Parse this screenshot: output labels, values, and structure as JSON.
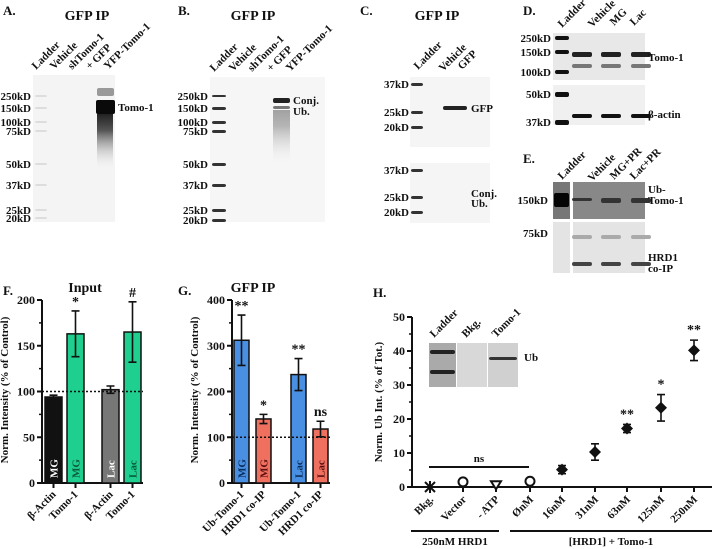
{
  "panels": {
    "A": {
      "letter": "A.",
      "title": "GFP IP",
      "lanes": [
        "Ladder",
        "Vehicle",
        "shTomo-1",
        "+ GFP",
        "YFP-Tomo-1"
      ],
      "mw": [
        "250kD",
        "150kD",
        "100kD",
        "75kD",
        "50kD",
        "37kD",
        "25kD",
        "20kD"
      ],
      "bands": [
        "Tomo-1"
      ]
    },
    "B": {
      "letter": "B.",
      "title": "GFP IP",
      "lanes": [
        "Ladder",
        "Vehicle",
        "shTomo-1",
        "+ GFP",
        "YFP-Tomo-1"
      ],
      "mw": [
        "250kD",
        "150kD",
        "100kD",
        "75kD",
        "50kD",
        "37kD",
        "25kD",
        "20kD"
      ],
      "bands": [
        "Conj.",
        "Ub."
      ]
    },
    "C": {
      "letter": "C.",
      "title": "GFP IP",
      "lanes": [
        "Ladder",
        "Vehicle",
        "GFP"
      ],
      "mw_top": [
        "37kD",
        "25kD",
        "20kD"
      ],
      "mw_bottom": [
        "37kD",
        "25kD",
        "20kD"
      ],
      "bands": [
        "GFP",
        "Conj.",
        "Ub."
      ]
    },
    "D": {
      "letter": "D.",
      "lanes": [
        "Ladder",
        "Vehicle",
        "MG",
        "Lac"
      ],
      "mw": [
        "250kD",
        "150kD",
        "100kD",
        "50kD",
        "37kD"
      ],
      "bands": [
        "Tomo-1",
        "β-actin"
      ]
    },
    "E": {
      "letter": "E.",
      "lanes": [
        "Ladder",
        "Vehicle",
        "MG+PR",
        "Lac+PR"
      ],
      "mw": [
        "150kD",
        "75kD"
      ],
      "bands": [
        "Ub-",
        "Tomo-1",
        "HRD1",
        "co-IP"
      ]
    },
    "H_inset": {
      "lanes": [
        "Ladder",
        "Bkg.",
        "Tomo-1"
      ],
      "band": "Ub"
    }
  },
  "chart_data": [
    {
      "panel": "F.",
      "type": "bar",
      "title": "Input",
      "ylabel": "Norm. Intensity (% of Control)",
      "ylim": [
        0,
        200
      ],
      "yticks": [
        0,
        50,
        100,
        150,
        200
      ],
      "reference_line": 100,
      "categories": [
        "β-Actin",
        "Tomo-1",
        "β-Actin",
        "Tomo-1"
      ],
      "bar_labels": [
        "MG",
        "MG",
        "Lac",
        "Lac"
      ],
      "values": [
        94,
        163,
        102,
        165
      ],
      "errors": [
        2,
        25,
        4,
        33
      ],
      "significance": [
        "",
        "*",
        "",
        "#"
      ],
      "colors": [
        "#111111",
        "#1fcf8f",
        "#777777",
        "#1fcf8f"
      ]
    },
    {
      "panel": "G.",
      "type": "bar",
      "title": "GFP IP",
      "ylabel": "Norm. Intensity (% of Control)",
      "ylim": [
        0,
        400
      ],
      "yticks": [
        0,
        100,
        200,
        300,
        400
      ],
      "reference_line": 100,
      "categories": [
        "Ub-Tomo-1",
        "HRD1 co-IP",
        "Ub-Tomo-1",
        "HRD1 co-IP"
      ],
      "bar_labels": [
        "MG",
        "MG",
        "Lac",
        "Lac"
      ],
      "values": [
        312,
        140,
        237,
        118
      ],
      "errors": [
        55,
        10,
        35,
        17
      ],
      "significance": [
        "**",
        "*",
        "**",
        "ns"
      ],
      "colors": [
        "#4a90e2",
        "#f07060",
        "#4a90e2",
        "#f07060"
      ]
    },
    {
      "panel": "H.",
      "type": "scatter",
      "ylabel": "Norm. Ub Int. (% of Tot.)",
      "ylim": [
        0,
        50
      ],
      "yticks": [
        0,
        10,
        20,
        30,
        40,
        50
      ],
      "categories": [
        "Bkg.",
        "Vector",
        "- ATP",
        "ØnM",
        "16nM",
        "31nM",
        "63nM",
        "125nM",
        "250nM"
      ],
      "values": [
        0,
        1.5,
        0.5,
        1.7,
        5.1,
        10.3,
        17.2,
        23.3,
        40.2
      ],
      "errors": [
        0,
        0.5,
        0.5,
        0.5,
        1.2,
        2.4,
        1.2,
        3.9,
        3.0
      ],
      "markers": [
        "star",
        "circle",
        "triangle-down",
        "circle",
        "diamond",
        "diamond",
        "diamond",
        "diamond",
        "diamond"
      ],
      "significance": [
        "",
        "",
        "",
        "",
        "",
        "",
        "**",
        "*",
        "**"
      ],
      "ns_bracket": "ns",
      "groups": [
        {
          "label": "250nM HRD1"
        },
        {
          "label": "[HRD1] + Tomo-1"
        }
      ]
    }
  ]
}
